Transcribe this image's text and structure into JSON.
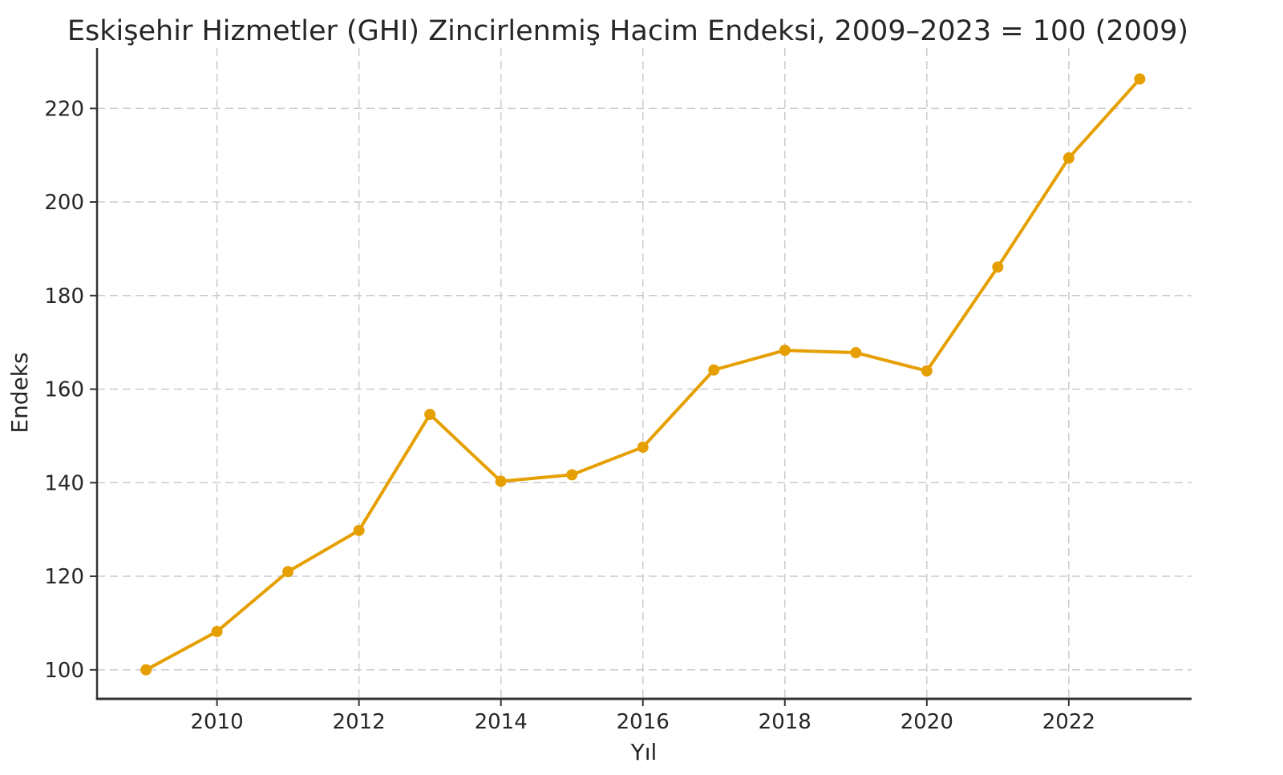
{
  "page": {
    "background": "#ffffff"
  },
  "chart_data": {
    "type": "line",
    "title": "Eskişehir Hizmetler (GHI) Zincirlenmiş Hacim Endeksi, 2009–2023 = 100 (2009)",
    "xlabel": "Yıl",
    "ylabel": "Endeks",
    "x": [
      2009,
      2010,
      2011,
      2012,
      2013,
      2014,
      2015,
      2016,
      2017,
      2018,
      2019,
      2020,
      2021,
      2022,
      2023
    ],
    "values": [
      100.0,
      108.2,
      121.0,
      129.8,
      154.6,
      140.3,
      141.7,
      147.6,
      164.1,
      168.3,
      167.8,
      163.9,
      186.1,
      209.4,
      226.3
    ],
    "xticks": [
      2010,
      2012,
      2014,
      2016,
      2018,
      2020,
      2022
    ],
    "yticks": [
      100,
      120,
      140,
      160,
      180,
      200,
      220
    ],
    "xlim": [
      2008.31,
      2023.73
    ],
    "ylim": [
      93.8,
      232.9
    ],
    "grid": true,
    "grid_style": "dashed",
    "legend_position": "none",
    "marker": "circle",
    "line_color": "#E69F00",
    "marker_color": "#E69F00",
    "text_color": "#262626",
    "tick_color": "#262626",
    "grid_color": "#cbcbcb",
    "spine_color": "#333333"
  }
}
